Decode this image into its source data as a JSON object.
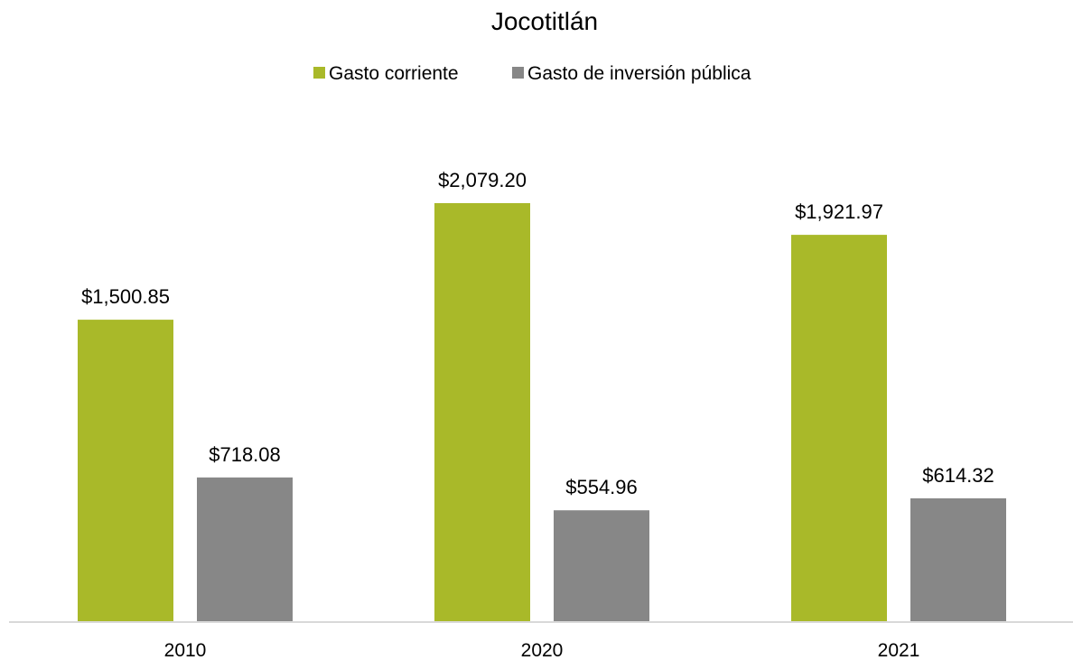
{
  "chart_data": {
    "type": "bar",
    "title": "Jocotitlán",
    "xlabel": "",
    "ylabel": "",
    "categories": [
      "2010",
      "2020",
      "2021"
    ],
    "series": [
      {
        "name": "Gasto corriente",
        "color": "#a9b929",
        "values": [
          1500.85,
          2079.2,
          1921.97
        ],
        "labels": [
          "$1,500.85",
          "$2,079.20",
          "$1,921.97"
        ]
      },
      {
        "name": "Gasto de inversión pública",
        "color": "#878787",
        "values": [
          718.08,
          554.96,
          614.32
        ],
        "labels": [
          "$718.08",
          "$554.96",
          "$614.32"
        ]
      }
    ],
    "ylim": [
      0,
      2400
    ],
    "grid": false,
    "legend_position": "top-center",
    "axis_color": "#d9d9d9"
  }
}
